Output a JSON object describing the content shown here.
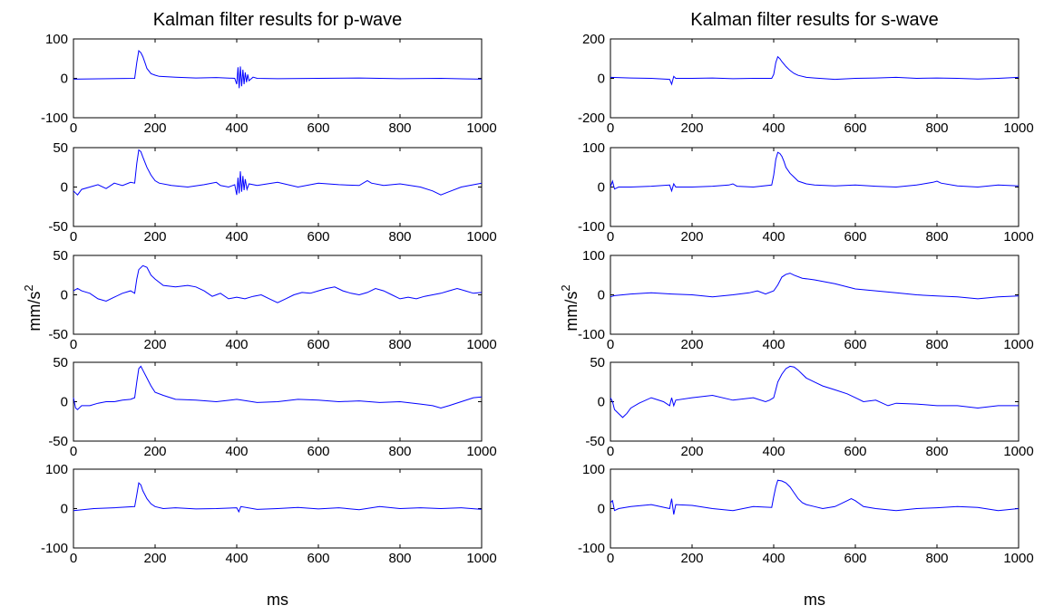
{
  "trace_color": "#0000ff",
  "left_title": "Kalman filter results for p-wave",
  "right_title": "Kalman filter results for s-wave",
  "y_axis_label": "mm/s",
  "y_axis_label_exponent": "2",
  "x_axis_label": "ms",
  "chart_data": [
    {
      "type": "line",
      "column": "left",
      "row": 0,
      "xlim": [
        0,
        1000
      ],
      "ylim": [
        -100,
        100
      ],
      "xticks": [
        "0",
        "200",
        "400",
        "600",
        "800",
        "1000"
      ],
      "yticks": [
        "100",
        "0",
        "-100"
      ],
      "x": [
        0,
        150,
        155,
        160,
        165,
        170,
        175,
        180,
        190,
        200,
        210,
        250,
        300,
        350,
        395,
        400,
        403,
        406,
        409,
        412,
        415,
        418,
        421,
        424,
        427,
        430,
        440,
        450,
        500,
        600,
        700,
        800,
        900,
        1000
      ],
      "y": [
        -2,
        0,
        40,
        70,
        65,
        55,
        40,
        25,
        12,
        8,
        5,
        3,
        1,
        2,
        0,
        -15,
        28,
        -25,
        30,
        -20,
        22,
        -15,
        15,
        -10,
        10,
        -6,
        3,
        0,
        -1,
        0,
        1,
        -1,
        0,
        -2
      ]
    },
    {
      "type": "line",
      "column": "left",
      "row": 1,
      "xlim": [
        0,
        1000
      ],
      "ylim": [
        -50,
        50
      ],
      "xticks": [
        "0",
        "200",
        "400",
        "600",
        "800",
        "1000"
      ],
      "yticks": [
        "50",
        "0",
        "-50"
      ],
      "x": [
        0,
        10,
        20,
        40,
        60,
        80,
        100,
        120,
        140,
        150,
        155,
        160,
        165,
        170,
        180,
        190,
        200,
        210,
        240,
        280,
        320,
        350,
        360,
        380,
        395,
        400,
        403,
        406,
        409,
        412,
        415,
        418,
        421,
        425,
        430,
        450,
        500,
        550,
        600,
        650,
        700,
        720,
        730,
        760,
        800,
        850,
        880,
        900,
        920,
        950,
        1000
      ],
      "y": [
        -5,
        -10,
        -3,
        0,
        3,
        -2,
        5,
        2,
        6,
        5,
        30,
        47,
        45,
        38,
        25,
        15,
        8,
        5,
        2,
        0,
        3,
        6,
        2,
        0,
        3,
        -10,
        12,
        -8,
        20,
        -6,
        14,
        -4,
        10,
        -3,
        4,
        2,
        6,
        0,
        5,
        3,
        2,
        8,
        5,
        2,
        4,
        0,
        -5,
        -10,
        -6,
        0,
        5
      ]
    },
    {
      "type": "line",
      "column": "left",
      "row": 2,
      "xlim": [
        0,
        1000
      ],
      "ylim": [
        -50,
        50
      ],
      "xticks": [
        "0",
        "200",
        "400",
        "600",
        "800",
        "1000"
      ],
      "yticks": [
        "50",
        "0",
        "-50"
      ],
      "x": [
        0,
        10,
        20,
        40,
        60,
        80,
        100,
        120,
        140,
        150,
        155,
        160,
        170,
        180,
        190,
        200,
        220,
        250,
        280,
        300,
        320,
        340,
        350,
        360,
        380,
        400,
        420,
        440,
        460,
        480,
        500,
        520,
        540,
        560,
        580,
        600,
        620,
        640,
        660,
        680,
        700,
        720,
        740,
        760,
        780,
        800,
        820,
        840,
        860,
        880,
        900,
        920,
        940,
        960,
        980,
        1000
      ],
      "y": [
        5,
        8,
        5,
        2,
        -5,
        -8,
        -3,
        2,
        5,
        2,
        20,
        32,
        37,
        35,
        25,
        20,
        12,
        10,
        12,
        10,
        5,
        -2,
        0,
        2,
        -5,
        -3,
        -5,
        -2,
        0,
        -5,
        -10,
        -5,
        0,
        3,
        2,
        5,
        8,
        10,
        5,
        2,
        0,
        3,
        8,
        5,
        0,
        -5,
        -3,
        -5,
        -2,
        0,
        2,
        5,
        8,
        5,
        2,
        3
      ]
    },
    {
      "type": "line",
      "column": "left",
      "row": 3,
      "xlim": [
        0,
        1000
      ],
      "ylim": [
        -50,
        50
      ],
      "xticks": [
        "0",
        "200",
        "400",
        "600",
        "800",
        "1000"
      ],
      "yticks": [
        "50",
        "0",
        "-50"
      ],
      "x": [
        0,
        5,
        10,
        20,
        40,
        60,
        80,
        100,
        120,
        140,
        150,
        155,
        160,
        165,
        170,
        180,
        190,
        200,
        220,
        250,
        300,
        350,
        400,
        450,
        500,
        550,
        600,
        650,
        700,
        750,
        800,
        850,
        880,
        900,
        920,
        950,
        980,
        1000
      ],
      "y": [
        5,
        -8,
        -10,
        -5,
        -5,
        -2,
        0,
        0,
        2,
        3,
        5,
        25,
        42,
        45,
        40,
        30,
        20,
        12,
        8,
        3,
        2,
        0,
        3,
        -1,
        0,
        3,
        2,
        0,
        1,
        -1,
        0,
        -3,
        -5,
        -8,
        -5,
        0,
        5,
        6
      ]
    },
    {
      "type": "line",
      "column": "left",
      "row": 4,
      "xlim": [
        0,
        1000
      ],
      "ylim": [
        -100,
        100
      ],
      "xticks": [
        "0",
        "200",
        "400",
        "600",
        "800",
        "1000"
      ],
      "yticks": [
        "100",
        "0",
        "-100"
      ],
      "x": [
        0,
        50,
        100,
        150,
        155,
        160,
        165,
        170,
        180,
        190,
        200,
        220,
        250,
        300,
        350,
        400,
        405,
        410,
        450,
        500,
        550,
        600,
        650,
        700,
        750,
        800,
        850,
        900,
        950,
        1000
      ],
      "y": [
        -5,
        0,
        2,
        5,
        35,
        65,
        60,
        45,
        25,
        12,
        5,
        0,
        2,
        -1,
        0,
        2,
        -8,
        5,
        -2,
        0,
        3,
        -1,
        2,
        -3,
        5,
        0,
        2,
        0,
        2,
        -2
      ]
    },
    {
      "type": "line",
      "column": "right",
      "row": 0,
      "xlim": [
        0,
        1000
      ],
      "ylim": [
        -200,
        200
      ],
      "xticks": [
        "0",
        "200",
        "400",
        "600",
        "800",
        "1000"
      ],
      "yticks": [
        "200",
        "0",
        "-200"
      ],
      "x": [
        0,
        50,
        100,
        145,
        150,
        155,
        160,
        200,
        250,
        300,
        350,
        395,
        400,
        405,
        410,
        415,
        420,
        430,
        440,
        450,
        460,
        480,
        500,
        550,
        600,
        650,
        700,
        750,
        800,
        850,
        900,
        950,
        1000
      ],
      "y": [
        5,
        2,
        0,
        -5,
        -30,
        10,
        0,
        0,
        2,
        -2,
        0,
        0,
        20,
        80,
        110,
        100,
        85,
        60,
        40,
        25,
        15,
        5,
        2,
        -5,
        0,
        2,
        5,
        0,
        2,
        0,
        -3,
        0,
        5
      ]
    },
    {
      "type": "line",
      "column": "right",
      "row": 1,
      "xlim": [
        0,
        1000
      ],
      "ylim": [
        -100,
        100
      ],
      "xticks": [
        "0",
        "200",
        "400",
        "600",
        "800",
        "1000"
      ],
      "yticks": [
        "100",
        "0",
        "-100"
      ],
      "x": [
        0,
        5,
        10,
        20,
        50,
        100,
        145,
        150,
        155,
        160,
        200,
        250,
        290,
        300,
        310,
        350,
        395,
        400,
        405,
        410,
        415,
        420,
        425,
        430,
        440,
        450,
        460,
        480,
        500,
        550,
        600,
        650,
        700,
        750,
        790,
        800,
        810,
        850,
        900,
        950,
        1000
      ],
      "y": [
        0,
        15,
        -5,
        0,
        0,
        2,
        5,
        -10,
        8,
        0,
        0,
        2,
        5,
        8,
        2,
        0,
        5,
        30,
        70,
        88,
        85,
        78,
        65,
        50,
        35,
        25,
        15,
        8,
        5,
        3,
        5,
        2,
        0,
        5,
        12,
        15,
        10,
        3,
        0,
        5,
        3
      ]
    },
    {
      "type": "line",
      "column": "right",
      "row": 2,
      "xlim": [
        0,
        1000
      ],
      "ylim": [
        -100,
        100
      ],
      "xticks": [
        "0",
        "200",
        "400",
        "600",
        "800",
        "1000"
      ],
      "yticks": [
        "100",
        "0",
        "-100"
      ],
      "x": [
        0,
        10,
        30,
        50,
        100,
        150,
        200,
        250,
        300,
        340,
        360,
        380,
        400,
        410,
        420,
        430,
        440,
        450,
        470,
        500,
        550,
        600,
        650,
        700,
        750,
        800,
        850,
        900,
        950,
        1000
      ],
      "y": [
        -5,
        -2,
        0,
        2,
        5,
        2,
        0,
        -5,
        0,
        5,
        10,
        2,
        10,
        25,
        45,
        52,
        55,
        50,
        42,
        38,
        28,
        15,
        10,
        5,
        0,
        -3,
        -5,
        -10,
        -5,
        -3
      ]
    },
    {
      "type": "line",
      "column": "right",
      "row": 3,
      "xlim": [
        0,
        1000
      ],
      "ylim": [
        -50,
        50
      ],
      "xticks": [
        "0",
        "200",
        "400",
        "600",
        "800",
        "1000"
      ],
      "yticks": [
        "50",
        "0",
        "-50"
      ],
      "x": [
        0,
        5,
        10,
        20,
        30,
        40,
        50,
        70,
        100,
        130,
        145,
        150,
        155,
        160,
        200,
        250,
        300,
        350,
        380,
        390,
        400,
        405,
        410,
        420,
        430,
        440,
        450,
        460,
        470,
        480,
        500,
        520,
        550,
        580,
        600,
        620,
        650,
        680,
        700,
        750,
        800,
        850,
        900,
        950,
        1000
      ],
      "y": [
        5,
        0,
        -10,
        -15,
        -20,
        -15,
        -8,
        -2,
        5,
        0,
        -5,
        5,
        -5,
        2,
        5,
        8,
        2,
        5,
        0,
        2,
        5,
        15,
        25,
        35,
        42,
        45,
        44,
        40,
        35,
        30,
        25,
        20,
        15,
        10,
        5,
        0,
        2,
        -5,
        -2,
        -3,
        -5,
        -5,
        -8,
        -5,
        -5
      ]
    },
    {
      "type": "line",
      "column": "right",
      "row": 4,
      "xlim": [
        0,
        1000
      ],
      "ylim": [
        -100,
        100
      ],
      "xticks": [
        "0",
        "200",
        "400",
        "600",
        "800",
        "1000"
      ],
      "yticks": [
        "100",
        "0",
        "-100"
      ],
      "x": [
        0,
        5,
        10,
        20,
        50,
        100,
        145,
        150,
        155,
        160,
        200,
        250,
        300,
        350,
        395,
        400,
        405,
        410,
        420,
        430,
        440,
        450,
        460,
        470,
        480,
        500,
        520,
        550,
        580,
        590,
        600,
        620,
        650,
        700,
        750,
        800,
        850,
        900,
        950,
        1000
      ],
      "y": [
        15,
        20,
        -5,
        0,
        5,
        10,
        0,
        25,
        -15,
        10,
        8,
        0,
        -5,
        5,
        3,
        30,
        55,
        72,
        70,
        65,
        55,
        40,
        25,
        15,
        10,
        5,
        0,
        5,
        20,
        25,
        20,
        5,
        0,
        -5,
        0,
        2,
        5,
        3,
        -5,
        0
      ]
    }
  ]
}
